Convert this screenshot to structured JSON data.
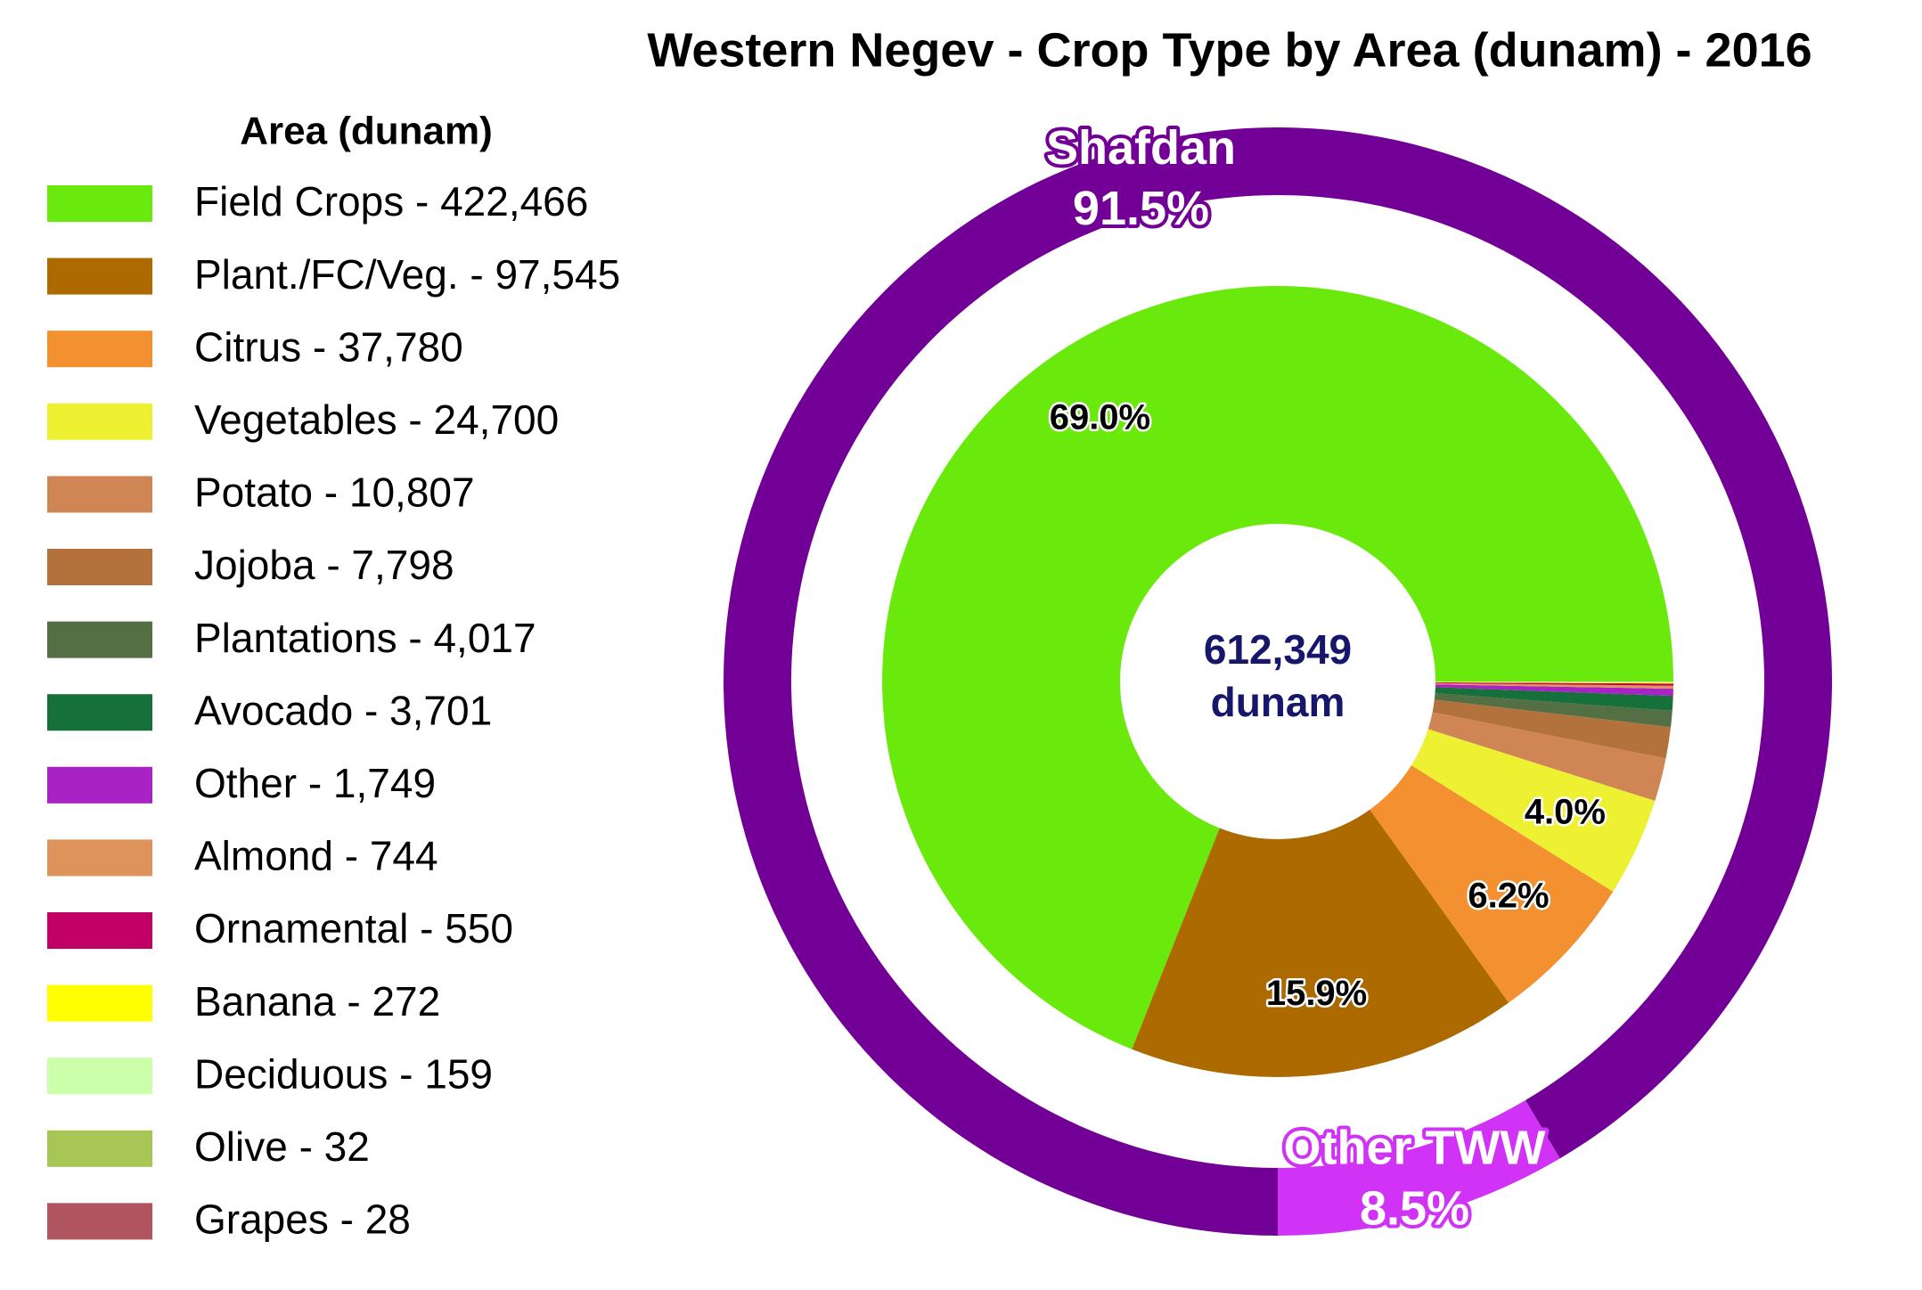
{
  "chart_data": {
    "type": "donut",
    "title": "Western Negev - Crop Type by Area (dunam) - 2016",
    "legend_title": "Area (dunam)",
    "categories": [
      "Field Crops - 422,466",
      "Plant./FC/Veg. - 97,545",
      "Citrus - 37,780",
      "Vegetables - 24,700",
      "Potato - 10,807",
      "Jojoba - 7,798",
      "Plantations - 4,017",
      "Avocado - 3,701",
      "Other - 1,749",
      "Almond - 744",
      "Ornamental - 550",
      "Banana - 272",
      "Deciduous - 159",
      "Olive - 32",
      "Grapes - 28"
    ],
    "values": [
      422466,
      97545,
      37780,
      24700,
      10807,
      7798,
      4017,
      3701,
      1749,
      744,
      550,
      272,
      159,
      32,
      28
    ],
    "colors": [
      "#6aea0c",
      "#ad6a00",
      "#f39130",
      "#eef032",
      "#cf8654",
      "#b3713b",
      "#546f44",
      "#16703a",
      "#a822c4",
      "#de935b",
      "#c20066",
      "#ffff00",
      "#ccffaa",
      "#a8c655",
      "#b0555f"
    ],
    "pct_labels": [
      "69.0%",
      "15.9%",
      "6.2%",
      "4.0%",
      null,
      null,
      null,
      null,
      null,
      null,
      null,
      null,
      null,
      null,
      null
    ],
    "center_label": [
      "612,349",
      "dunam"
    ],
    "outer_ring": {
      "categories": [
        "Shafdan",
        "Other TWW"
      ],
      "values": [
        91.5,
        8.5
      ],
      "value_labels": [
        "91.5%",
        "8.5%"
      ],
      "colors": [
        "#720096",
        "#d033f5"
      ]
    }
  }
}
